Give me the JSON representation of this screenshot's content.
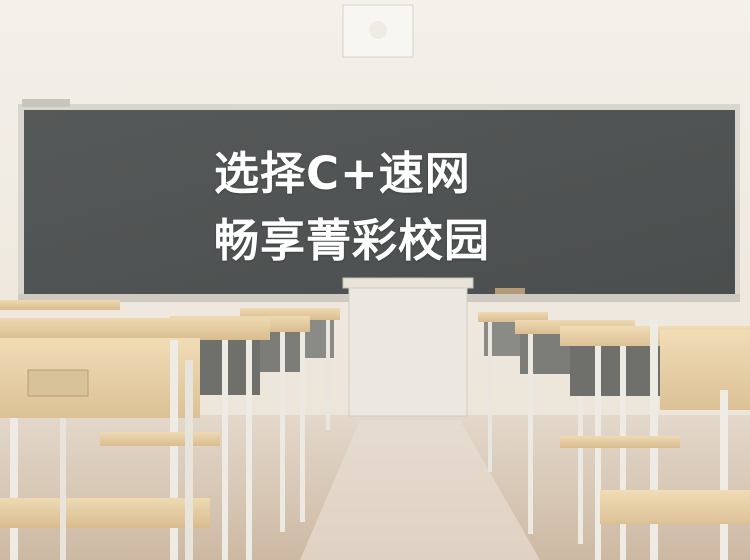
{
  "overlay": {
    "line1": "选择C+速网",
    "line2": "畅享菁彩校园"
  },
  "colors": {
    "wall": "#f1ece4",
    "blackboard": "#505353",
    "board_frame": "#d9d6cf",
    "desk_wood": "#e6cfa6",
    "floor": "#d8c9b8",
    "text": "#ffffff"
  }
}
